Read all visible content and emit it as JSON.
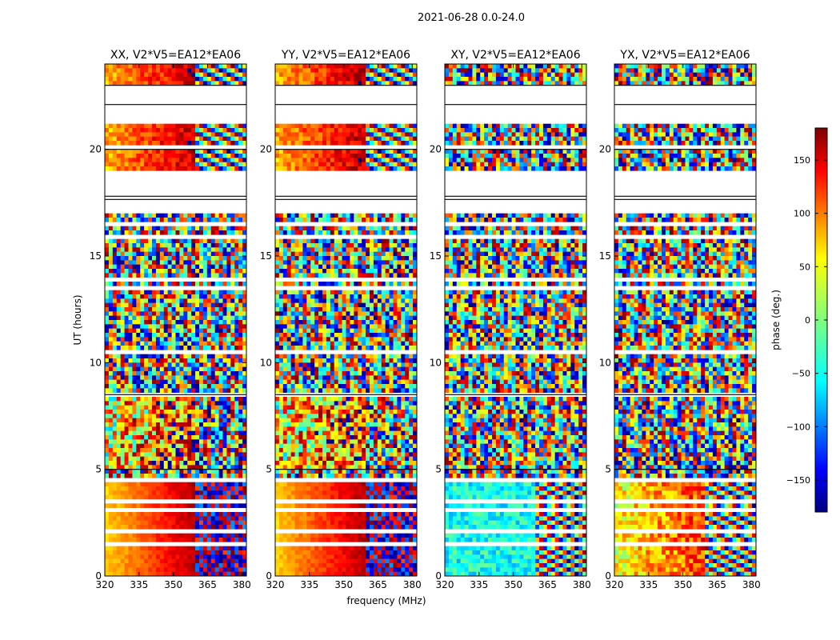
{
  "chart_data": {
    "type": "heatmap",
    "suptitle": "2021-06-28 0.0-24.0",
    "xlabel": "frequency (MHz)",
    "ylabel": "UT (hours)",
    "xlim": [
      320,
      382
    ],
    "ylim": [
      0,
      24
    ],
    "xticks": [
      320,
      335,
      350,
      365,
      380
    ],
    "yticks": [
      0,
      5,
      10,
      15,
      20
    ],
    "panels": [
      {
        "title": "XX, V2*V5=EA12*EA06",
        "pol": "XX"
      },
      {
        "title": "YY, V2*V5=EA12*EA06",
        "pol": "YY"
      },
      {
        "title": "XY, V2*V5=EA12*EA06",
        "pol": "XY"
      },
      {
        "title": "YX, V2*V5=EA12*EA06",
        "pol": "YX"
      }
    ],
    "colorbar": {
      "label": "phase (deg.)",
      "range": [
        -180,
        180
      ],
      "ticks": [
        150,
        100,
        50,
        0,
        -50,
        -100,
        -150
      ],
      "colormap": "jet"
    },
    "flagged_ut_bands": [
      [
        22.0,
        23.0
      ],
      [
        21.25,
        22.1
      ],
      [
        20.0,
        20.1
      ],
      [
        18.7,
        19.0
      ],
      [
        17.9,
        18.6
      ],
      [
        17.65,
        17.8
      ],
      [
        17.0,
        17.65
      ],
      [
        16.5,
        16.6
      ],
      [
        15.9,
        16.0
      ],
      [
        13.9,
        14.0
      ],
      [
        13.5,
        13.6
      ],
      [
        10.5,
        10.6
      ],
      [
        8.4,
        8.5
      ],
      [
        5.9,
        6.0
      ],
      [
        5.0,
        5.1
      ],
      [
        4.45,
        4.55
      ],
      [
        4.2,
        4.3
      ],
      [
        3.5,
        3.6
      ],
      [
        3.1,
        3.2
      ],
      [
        2.0,
        2.15
      ],
      [
        1.45,
        1.55
      ],
      [
        0.95,
        1.05
      ]
    ]
  }
}
